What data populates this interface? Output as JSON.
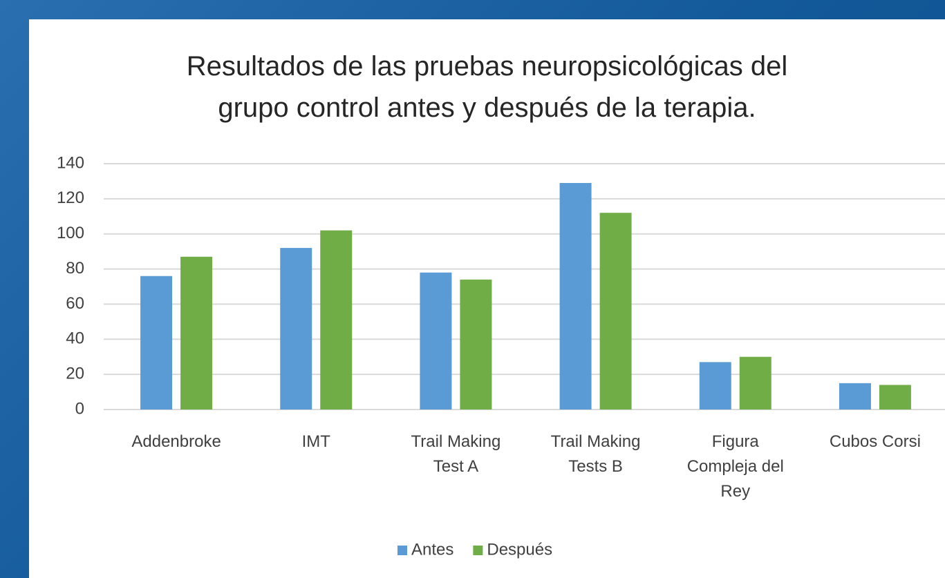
{
  "chart_data": {
    "type": "bar",
    "title": "Resultados de las pruebas neuropsicológicas del\ngrupo control  antes y después de la terapia.",
    "categories": [
      "Addenbroke",
      "IMT",
      "Trail Making\nTest A",
      "Trail Making\nTests B",
      "Figura\nCompleja del\nRey",
      "Cubos Corsi"
    ],
    "series": [
      {
        "name": "Antes",
        "color": "#5b9bd5",
        "values": [
          76,
          92,
          78,
          129,
          27,
          15
        ]
      },
      {
        "name": "Después",
        "color": "#70ad47",
        "values": [
          87,
          102,
          74,
          112,
          30,
          14
        ]
      }
    ],
    "ylim": [
      0,
      140
    ],
    "yticks": [
      0,
      20,
      40,
      60,
      80,
      100,
      120,
      140
    ],
    "grid": true,
    "legend": "bottom"
  }
}
